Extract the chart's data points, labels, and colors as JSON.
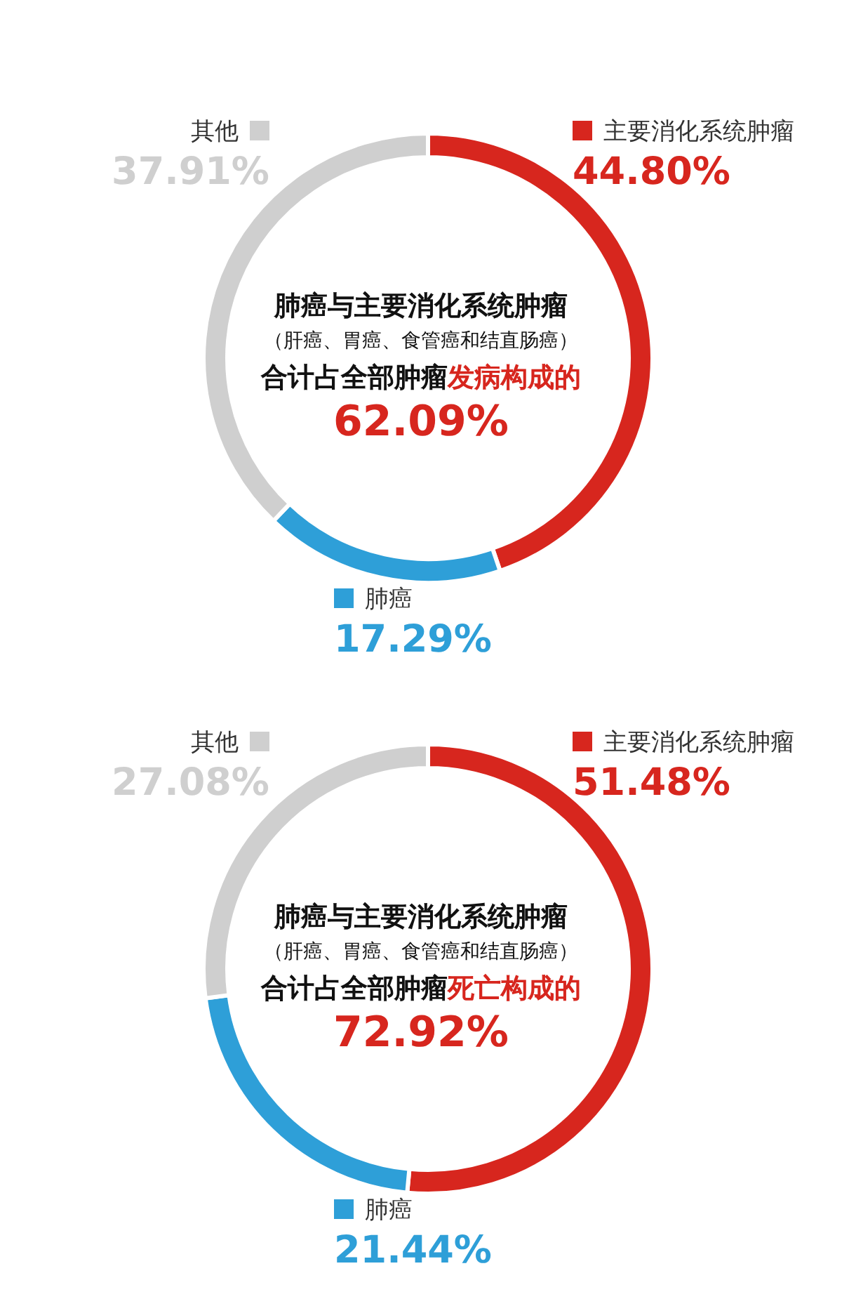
{
  "chart_data": [
    {
      "type": "donut",
      "categories": [
        "主要消化系统肿瘤",
        "肺癌",
        "其他"
      ],
      "values": [
        44.8,
        17.29,
        37.91
      ],
      "colors": [
        "#d7261e",
        "#2e9fd8",
        "#cfcfcf"
      ],
      "value_labels": [
        "44.80%",
        "17.29%",
        "37.91%"
      ],
      "legend": "right",
      "annotations": [
        "肺癌与主要消化系统肿瘤",
        "（肝癌、胃癌、食管癌和结直肠癌）",
        "合计占全部肿瘤",
        "发病构成的",
        "62.09%"
      ]
    },
    {
      "type": "donut",
      "categories": [
        "主要消化系统肿瘤",
        "肺癌",
        "其他"
      ],
      "values": [
        51.48,
        21.44,
        27.08
      ],
      "colors": [
        "#d7261e",
        "#2e9fd8",
        "#cfcfcf"
      ],
      "value_labels": [
        "51.48%",
        "21.44%",
        "27.08%"
      ],
      "legend": "right",
      "annotations": [
        "肺癌与主要消化系统肿瘤",
        "（肝癌、胃癌、食管癌和结直肠癌）",
        "合计占全部肿瘤",
        "死亡构成的",
        "72.92%"
      ]
    }
  ]
}
